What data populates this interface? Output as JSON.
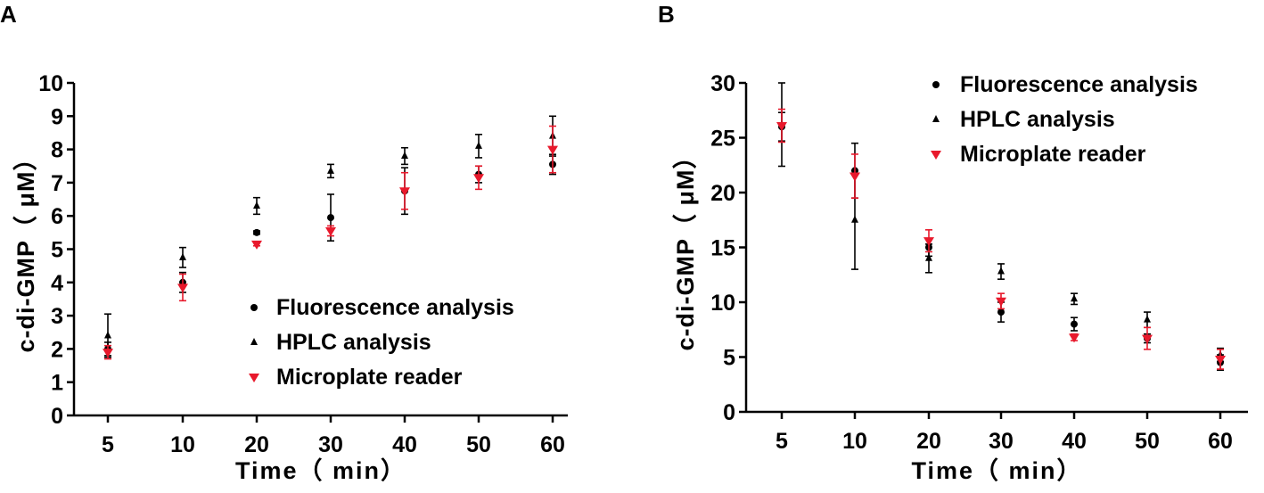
{
  "colors": {
    "black": "#000000",
    "red": "#e8192c"
  },
  "chart_data": [
    {
      "panel_label": "A",
      "type": "scatter",
      "categories": [
        "5",
        "10",
        "20",
        "30",
        "40",
        "50",
        "60"
      ],
      "xlabel": "Time（ min）",
      "ylabel": "c-di-GMP（ μM）",
      "ylim": [
        0,
        10
      ],
      "yticks": [
        "0",
        "1",
        "2",
        "3",
        "4",
        "5",
        "6",
        "7",
        "8",
        "9",
        "10"
      ],
      "legend_position": "bottom-right",
      "series": [
        {
          "name": "Fluorescence analysis",
          "marker": "circle",
          "color": "#000000",
          "values": [
            2.0,
            4.0,
            5.5,
            5.95,
            6.75,
            7.25,
            7.55
          ],
          "errors": [
            0.2,
            0.3,
            0.05,
            0.7,
            0.7,
            0.25,
            0.3
          ]
        },
        {
          "name": "HPLC analysis",
          "marker": "triangle-up",
          "color": "#000000",
          "values": [
            2.4,
            4.75,
            6.3,
            7.35,
            7.8,
            8.1,
            8.4
          ],
          "errors": [
            0.65,
            0.3,
            0.25,
            0.2,
            0.25,
            0.35,
            0.6
          ]
        },
        {
          "name": "Microplate reader",
          "marker": "triangle-down",
          "color": "#e8192c",
          "values": [
            1.9,
            3.85,
            5.15,
            5.55,
            6.75,
            7.15,
            8.0
          ],
          "errors": [
            0.2,
            0.4,
            0.05,
            0.15,
            0.55,
            0.35,
            0.7
          ]
        }
      ]
    },
    {
      "panel_label": "B",
      "type": "scatter",
      "categories": [
        "5",
        "10",
        "20",
        "30",
        "40",
        "50",
        "60"
      ],
      "xlabel": "Time（ min）",
      "ylabel": "c-di-GMP（ μM）",
      "ylim": [
        0,
        30
      ],
      "yticks": [
        "0",
        "5",
        "10",
        "15",
        "20",
        "25",
        "30"
      ],
      "legend_position": "top-right",
      "series": [
        {
          "name": "Fluorescence analysis",
          "marker": "circle",
          "color": "#000000",
          "values": [
            26.0,
            22.0,
            15.0,
            9.1,
            8.0,
            6.7,
            4.5
          ],
          "errors": [
            1.3,
            2.5,
            0.8,
            0.9,
            0.6,
            0.4,
            0.7
          ]
        },
        {
          "name": "HPLC analysis",
          "marker": "triangle-up",
          "color": "#000000",
          "values": [
            26.2,
            17.5,
            14.0,
            12.8,
            10.3,
            8.4,
            5.2
          ],
          "errors": [
            3.8,
            4.5,
            1.3,
            0.7,
            0.5,
            0.7,
            0.6
          ]
        },
        {
          "name": "Microplate reader",
          "marker": "triangle-down",
          "color": "#e8192c",
          "values": [
            26.1,
            21.5,
            15.6,
            10.1,
            6.8,
            6.7,
            4.8
          ],
          "errors": [
            1.5,
            2.0,
            1.0,
            0.7,
            0.3,
            1.0,
            0.9
          ]
        }
      ]
    }
  ]
}
